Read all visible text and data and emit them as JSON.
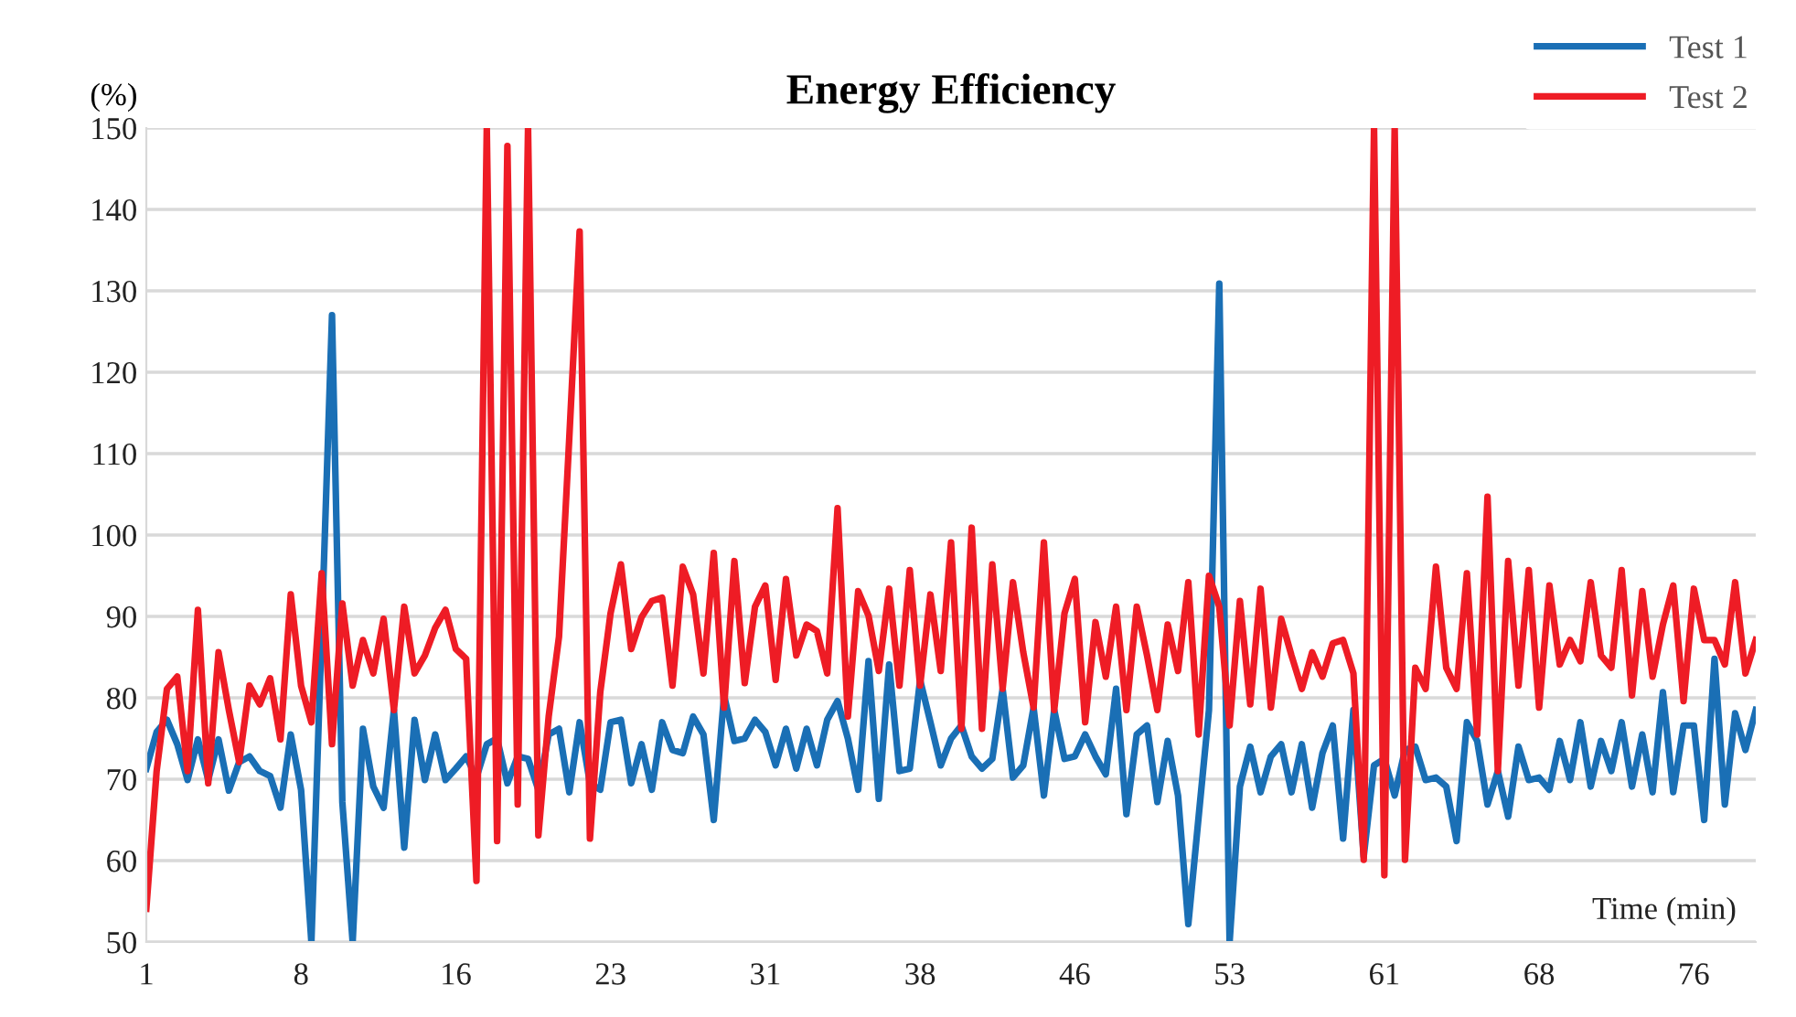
{
  "chart_data": {
    "type": "line",
    "title": "Energy Efficiency",
    "ylabel": "(%)",
    "xlabel": "Time (min)",
    "x": [
      1,
      1.5,
      2,
      2.5,
      3,
      3.5,
      4,
      4.5,
      5,
      5.5,
      6,
      6.5,
      7,
      7.5,
      8,
      8.5,
      9,
      9.5,
      10,
      10.5,
      11,
      11.5,
      12,
      12.5,
      13,
      13.5,
      14,
      14.5,
      15,
      15.5,
      16,
      16.5,
      17,
      17.5,
      18,
      18.5,
      19,
      19.5,
      20,
      20.5,
      21,
      21.5,
      22,
      22.5,
      23,
      23.5,
      24,
      24.5,
      25,
      25.5,
      26,
      26.5,
      27,
      27.5,
      28,
      28.5,
      29,
      29.5,
      30,
      30.5,
      31,
      31.5,
      32,
      32.5,
      33,
      33.5,
      34,
      34.5,
      35,
      35.5,
      36,
      36.5,
      37,
      37.5,
      38,
      38.5,
      39,
      39.5,
      40,
      40.5,
      41,
      41.5,
      42,
      42.5,
      43,
      43.5,
      44,
      44.5,
      45,
      45.5,
      46,
      46.5,
      47,
      47.5,
      48,
      48.5,
      49,
      49.5,
      50,
      50.5,
      51,
      51.5,
      52,
      52.5,
      53,
      53.5,
      54,
      54.5,
      55,
      55.5,
      56,
      56.5,
      57,
      57.5,
      58,
      58.5,
      59,
      59.5,
      60,
      60.5,
      61,
      61.5,
      62,
      62.5,
      63,
      63.5,
      64,
      64.5,
      65,
      65.5,
      66,
      66.5,
      67,
      67.5,
      68,
      68.5,
      69,
      69.5,
      70,
      70.5,
      71,
      71.5,
      72,
      72.5,
      73,
      73.5,
      74,
      74.5,
      75,
      75.5,
      76,
      76.5,
      77,
      77.5,
      78,
      78.5,
      79
    ],
    "series": [
      {
        "name": "Test 1",
        "color": "#1a6fb5",
        "values": [
          71.3,
          75.8,
          77.3,
          74.3,
          69.9,
          74.9,
          69.9,
          74.9,
          68.6,
          72.1,
          72.8,
          71.0,
          70.4,
          66.5,
          75.5,
          68.7,
          50,
          88.2,
          127.0,
          67.2,
          50,
          76.2,
          69.1,
          66.5,
          78.5,
          61.6,
          77.3,
          69.9,
          75.5,
          69.9,
          71.3,
          72.8,
          70.2,
          74.3,
          75.0,
          69.5,
          72.8,
          72.5,
          68.7,
          75.5,
          76.2,
          68.4,
          77.0,
          69.5,
          68.7,
          77.0,
          77.3,
          69.5,
          74.3,
          68.7,
          77.0,
          73.6,
          73.2,
          77.7,
          75.5,
          65.0,
          80.3,
          74.7,
          75.0,
          77.3,
          75.8,
          71.7,
          76.2,
          71.3,
          76.2,
          71.7,
          77.3,
          79.6,
          75.0,
          68.7,
          84.5,
          67.6,
          84.1,
          71.0,
          71.3,
          82.2,
          77.0,
          71.7,
          75.0,
          76.6,
          72.8,
          71.3,
          72.5,
          81.1,
          70.2,
          71.7,
          78.8,
          68.0,
          78.5,
          72.5,
          72.8,
          75.5,
          72.8,
          70.6,
          81.1,
          65.7,
          75.5,
          76.6,
          67.2,
          74.7,
          68.0,
          52.2,
          65.4,
          78.5,
          130.9,
          50,
          69.1,
          74.0,
          68.4,
          72.8,
          74.3,
          68.4,
          74.3,
          66.5,
          73.2,
          76.6,
          62.7,
          78.5,
          60.5,
          71.7,
          72.5,
          68.0,
          73.6,
          74.0,
          69.9,
          70.2,
          69.1,
          62.4,
          77.0,
          74.7,
          66.9,
          71.0,
          65.4,
          74.0,
          69.9,
          70.2,
          68.7,
          74.7,
          69.9,
          77.0,
          69.1,
          74.7,
          71.0,
          77.0,
          69.1,
          75.5,
          68.4,
          80.7,
          68.4,
          76.6,
          76.6,
          65.0,
          84.8,
          66.9,
          78.1,
          73.6,
          78.5
        ]
      },
      {
        "name": "Test 2",
        "color": "#ee1c25",
        "values": [
          54.1,
          71.0,
          81.1,
          82.6,
          71.0,
          90.8,
          69.5,
          85.6,
          78.5,
          72.1,
          81.5,
          79.2,
          82.4,
          74.9,
          92.7,
          81.5,
          77.0,
          95.3,
          74.3,
          91.6,
          81.5,
          87.1,
          83.0,
          89.7,
          78.5,
          91.2,
          83.0,
          85.2,
          88.6,
          90.8,
          86.0,
          84.8,
          57.5,
          150,
          62.4,
          147.8,
          66.9,
          150,
          63.1,
          77.7,
          87.5,
          112,
          137.3,
          62.7,
          80.7,
          90.4,
          96.4,
          86.0,
          89.9,
          91.9,
          92.3,
          81.5,
          96.1,
          92.7,
          83.0,
          97.8,
          78.8,
          96.8,
          81.8,
          91.2,
          93.8,
          82.2,
          94.6,
          85.2,
          89.0,
          88.2,
          83.0,
          103.3,
          77.7,
          93.1,
          90.1,
          83.3,
          93.4,
          81.5,
          95.7,
          81.5,
          92.7,
          83.3,
          99.1,
          76.2,
          100.9,
          76.2,
          96.4,
          81.1,
          94.2,
          85.6,
          78.8,
          99.1,
          78.5,
          90.4,
          94.6,
          77.0,
          89.3,
          82.6,
          91.2,
          78.5,
          91.2,
          85.2,
          78.5,
          89.0,
          83.3,
          94.2,
          75.5,
          95.0,
          91.2,
          76.6,
          91.9,
          79.2,
          93.4,
          78.8,
          89.7,
          85.2,
          81.1,
          85.6,
          82.6,
          86.7,
          87.1,
          83.0,
          60.1,
          150,
          58.2,
          150,
          60.1,
          83.7,
          81.1,
          96.1,
          83.7,
          81.1,
          95.3,
          75.5,
          104.7,
          71.0,
          96.8,
          81.5,
          95.7,
          78.8,
          93.8,
          84.1,
          87.1,
          84.5,
          94.2,
          85.2,
          83.7,
          95.7,
          80.3,
          93.1,
          82.6,
          89.0,
          93.8,
          79.6,
          93.4,
          87.1,
          87.1,
          84.1,
          94.2,
          83.0,
          87.1
        ]
      }
    ],
    "xlim": [
      1,
      79
    ],
    "xticks": [
      1,
      {
        "value": 8.5,
        "label": "8"
      },
      16,
      {
        "value": 23.5,
        "label": "23"
      },
      31,
      {
        "value": 38.5,
        "label": "38"
      },
      46,
      {
        "value": 53.5,
        "label": "53"
      },
      61,
      {
        "value": 68.5,
        "label": "68"
      },
      76
    ],
    "ylim": [
      50,
      150
    ],
    "yticks": [
      50,
      60,
      70,
      80,
      90,
      100,
      110,
      120,
      130,
      140,
      150
    ],
    "grid": "y",
    "legend": "top right",
    "marker": "none",
    "line_style": "solid"
  }
}
